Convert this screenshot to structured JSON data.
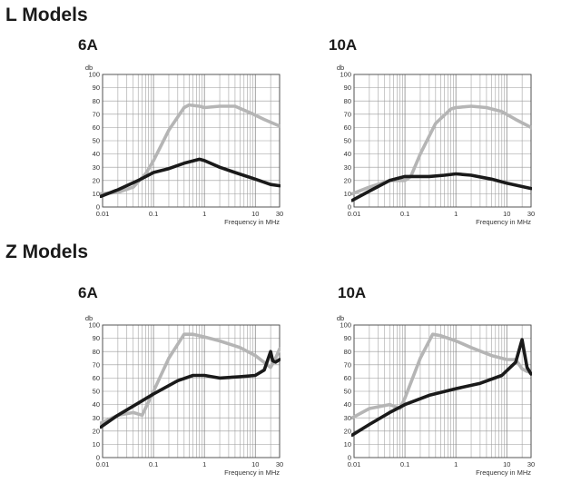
{
  "sections": {
    "l_title": "L Models",
    "z_title": "Z Models"
  },
  "colors": {
    "grey_series": "#b5b5b5",
    "black_series": "#1a1a1a",
    "background": "#ffffff"
  },
  "chart_data": [
    {
      "type": "line",
      "title": "6A",
      "group": "L Models",
      "ylabel": "db",
      "xlabel": "Frequency in MHz",
      "xscale": "log",
      "xlim": [
        0.01,
        30
      ],
      "ylim": [
        0,
        100
      ],
      "yticks": [
        "0",
        "10",
        "20",
        "30",
        "40",
        "50",
        "60",
        "70",
        "80",
        "90",
        "100"
      ],
      "xticks": [
        {
          "value": 0.01,
          "label": "0.01"
        },
        {
          "value": 0.1,
          "label": "0.1"
        },
        {
          "value": 1,
          "label": "1"
        },
        {
          "value": 10,
          "label": "10"
        },
        {
          "value": 30,
          "label": "30"
        }
      ],
      "grid": true,
      "series": [
        {
          "name": "grey",
          "color": "#b5b5b5",
          "points": [
            [
              0.008,
              10
            ],
            [
              0.02,
              11
            ],
            [
              0.04,
              15
            ],
            [
              0.07,
              25
            ],
            [
              0.1,
              35
            ],
            [
              0.2,
              58
            ],
            [
              0.4,
              75
            ],
            [
              0.5,
              77
            ],
            [
              0.8,
              76
            ],
            [
              1,
              75
            ],
            [
              2,
              76
            ],
            [
              4,
              76
            ],
            [
              8,
              71
            ],
            [
              15,
              66
            ],
            [
              30,
              61
            ]
          ]
        },
        {
          "name": "black",
          "color": "#1a1a1a",
          "points": [
            [
              0.008,
              8
            ],
            [
              0.02,
              13
            ],
            [
              0.05,
              20
            ],
            [
              0.1,
              26
            ],
            [
              0.2,
              29
            ],
            [
              0.4,
              33
            ],
            [
              0.8,
              36
            ],
            [
              1,
              35
            ],
            [
              2,
              30
            ],
            [
              4,
              26
            ],
            [
              10,
              21
            ],
            [
              20,
              17
            ],
            [
              30,
              16
            ]
          ]
        }
      ]
    },
    {
      "type": "line",
      "title": "10A",
      "group": "L Models",
      "ylabel": "db",
      "xlabel": "Frequency in MHz",
      "xscale": "log",
      "xlim": [
        0.01,
        30
      ],
      "ylim": [
        0,
        100
      ],
      "yticks": [
        "0",
        "10",
        "20",
        "30",
        "40",
        "50",
        "60",
        "70",
        "80",
        "90",
        "100"
      ],
      "xticks": [
        {
          "value": 0.01,
          "label": "0.01"
        },
        {
          "value": 0.1,
          "label": "0.1"
        },
        {
          "value": 1,
          "label": "1"
        },
        {
          "value": 10,
          "label": "10"
        },
        {
          "value": 30,
          "label": "30"
        }
      ],
      "grid": true,
      "series": [
        {
          "name": "grey",
          "color": "#b5b5b5",
          "points": [
            [
              0.008,
              10
            ],
            [
              0.02,
              15
            ],
            [
              0.05,
              20
            ],
            [
              0.1,
              20
            ],
            [
              0.13,
              23
            ],
            [
              0.2,
              40
            ],
            [
              0.4,
              63
            ],
            [
              0.8,
              74
            ],
            [
              1,
              75
            ],
            [
              2,
              76
            ],
            [
              4,
              75
            ],
            [
              8,
              72
            ],
            [
              15,
              66
            ],
            [
              30,
              60
            ]
          ]
        },
        {
          "name": "black",
          "color": "#1a1a1a",
          "points": [
            [
              0.008,
              5
            ],
            [
              0.02,
              12
            ],
            [
              0.05,
              20
            ],
            [
              0.1,
              23
            ],
            [
              0.3,
              23
            ],
            [
              0.6,
              24
            ],
            [
              1,
              25
            ],
            [
              2,
              24
            ],
            [
              5,
              21
            ],
            [
              10,
              18
            ],
            [
              30,
              14
            ]
          ]
        }
      ]
    },
    {
      "type": "line",
      "title": "6A",
      "group": "Z Models",
      "ylabel": "db",
      "xlabel": "Frequency in MHz",
      "xscale": "log",
      "xlim": [
        0.01,
        30
      ],
      "ylim": [
        0,
        100
      ],
      "yticks": [
        "0",
        "10",
        "20",
        "30",
        "40",
        "50",
        "60",
        "70",
        "80",
        "90",
        "100"
      ],
      "xticks": [
        {
          "value": 0.01,
          "label": "0.01"
        },
        {
          "value": 0.1,
          "label": "0.1"
        },
        {
          "value": 1,
          "label": "1"
        },
        {
          "value": 10,
          "label": "10"
        },
        {
          "value": 30,
          "label": "30"
        }
      ],
      "grid": true,
      "series": [
        {
          "name": "grey",
          "color": "#b5b5b5",
          "points": [
            [
              0.008,
              26
            ],
            [
              0.02,
              32
            ],
            [
              0.04,
              34
            ],
            [
              0.06,
              32
            ],
            [
              0.1,
              50
            ],
            [
              0.2,
              75
            ],
            [
              0.4,
              93
            ],
            [
              0.6,
              93
            ],
            [
              1,
              91
            ],
            [
              2,
              88
            ],
            [
              5,
              83
            ],
            [
              10,
              77
            ],
            [
              20,
              68
            ],
            [
              25,
              75
            ],
            [
              30,
              82
            ]
          ]
        },
        {
          "name": "black",
          "color": "#1a1a1a",
          "points": [
            [
              0.008,
              23
            ],
            [
              0.02,
              32
            ],
            [
              0.05,
              41
            ],
            [
              0.1,
              48
            ],
            [
              0.3,
              58
            ],
            [
              0.6,
              62
            ],
            [
              1,
              62
            ],
            [
              2,
              60
            ],
            [
              5,
              61
            ],
            [
              10,
              62
            ],
            [
              15,
              66
            ],
            [
              20,
              80
            ],
            [
              22,
              73
            ],
            [
              25,
              72
            ],
            [
              30,
              74
            ]
          ]
        }
      ]
    },
    {
      "type": "line",
      "title": "10A",
      "group": "Z Models",
      "ylabel": "db",
      "xlabel": "Frequency in MHz",
      "xscale": "log",
      "xlim": [
        0.01,
        30
      ],
      "ylim": [
        0,
        100
      ],
      "yticks": [
        "0",
        "10",
        "20",
        "30",
        "40",
        "50",
        "60",
        "70",
        "80",
        "90",
        "100"
      ],
      "xticks": [
        {
          "value": 0.01,
          "label": "0.01"
        },
        {
          "value": 0.1,
          "label": "0.1"
        },
        {
          "value": 1,
          "label": "1"
        },
        {
          "value": 10,
          "label": "10"
        },
        {
          "value": 30,
          "label": "30"
        }
      ],
      "grid": true,
      "series": [
        {
          "name": "grey",
          "color": "#b5b5b5",
          "points": [
            [
              0.008,
              30
            ],
            [
              0.02,
              37
            ],
            [
              0.05,
              40
            ],
            [
              0.08,
              37
            ],
            [
              0.1,
              45
            ],
            [
              0.2,
              75
            ],
            [
              0.35,
              93
            ],
            [
              0.5,
              92
            ],
            [
              1,
              88
            ],
            [
              2,
              83
            ],
            [
              5,
              77
            ],
            [
              10,
              74
            ],
            [
              15,
              74
            ],
            [
              20,
              67
            ],
            [
              25,
              65
            ],
            [
              30,
              64
            ]
          ]
        },
        {
          "name": "black",
          "color": "#1a1a1a",
          "points": [
            [
              0.008,
              17
            ],
            [
              0.02,
              25
            ],
            [
              0.05,
              34
            ],
            [
              0.1,
              40
            ],
            [
              0.3,
              47
            ],
            [
              1,
              52
            ],
            [
              3,
              56
            ],
            [
              8,
              62
            ],
            [
              15,
              72
            ],
            [
              20,
              89
            ],
            [
              22,
              80
            ],
            [
              25,
              68
            ],
            [
              30,
              63
            ]
          ]
        }
      ]
    }
  ]
}
